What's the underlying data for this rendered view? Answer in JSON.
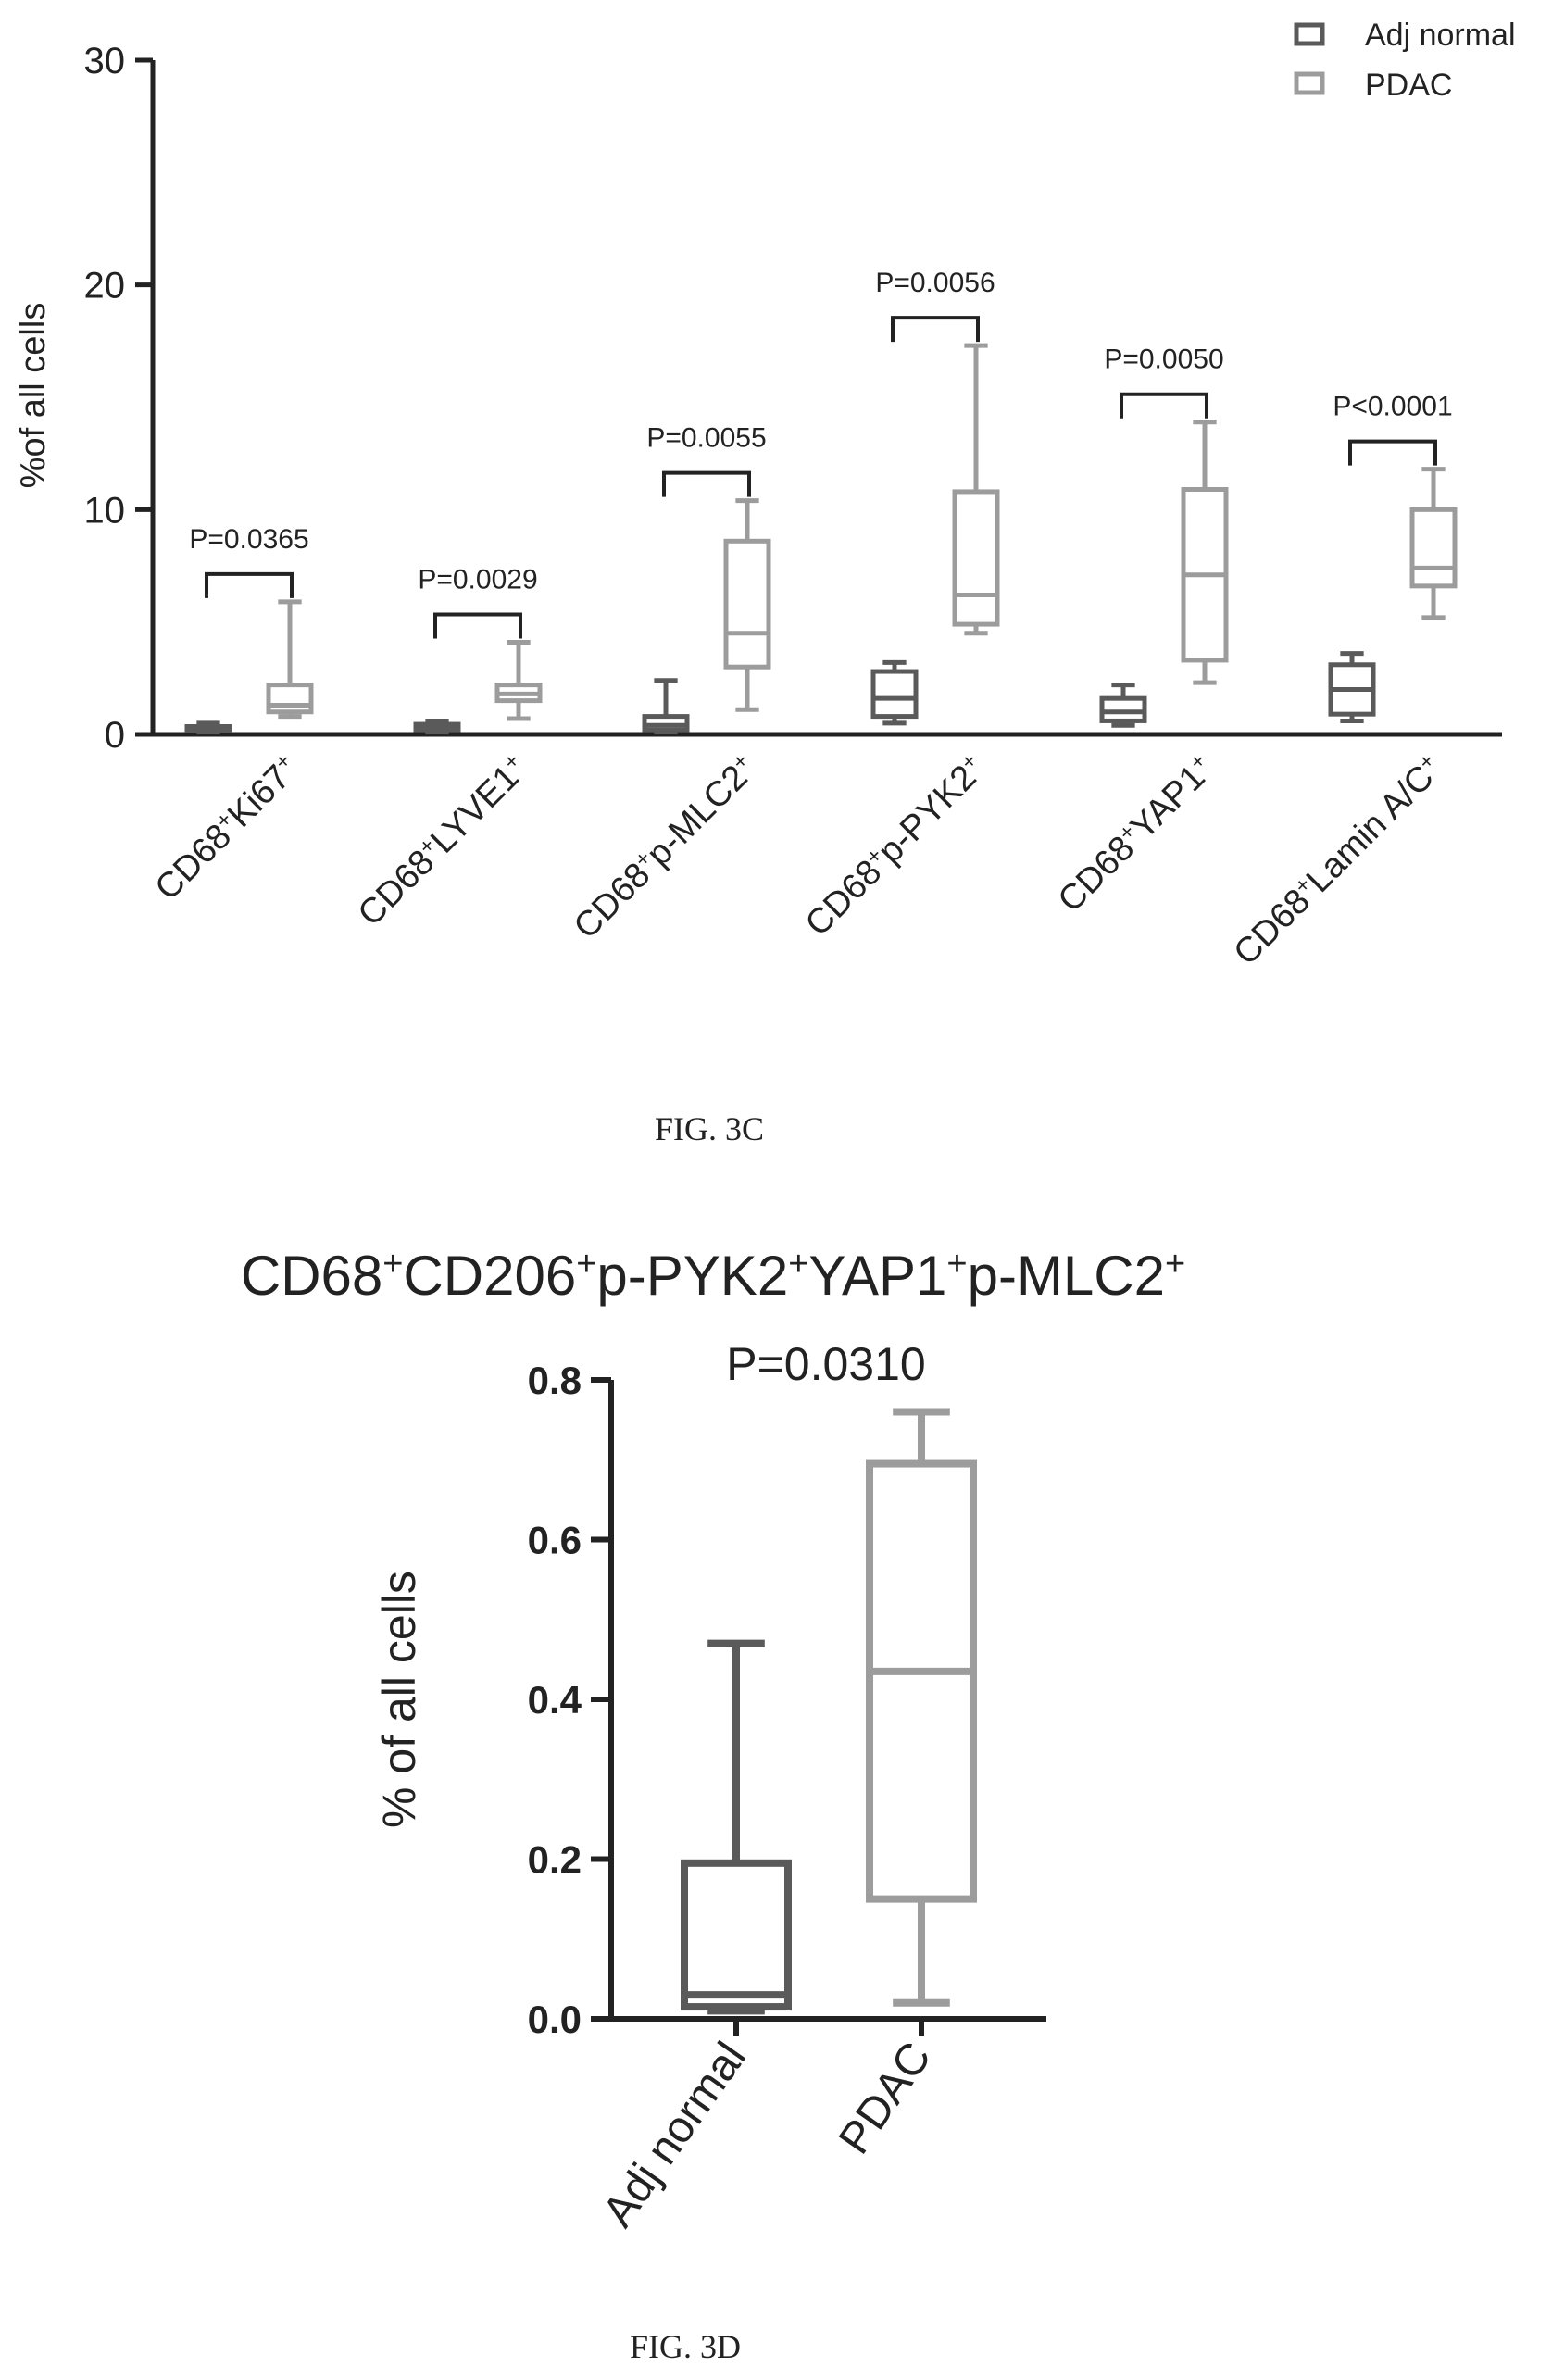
{
  "colors": {
    "adj": "#5a5a5a",
    "pdac": "#9c9c9c",
    "axis": "#222222",
    "text": "#222222"
  },
  "fig3c": {
    "caption": "FIG. 3C",
    "ylabel": "%of all cells",
    "legend": [
      "Adj normal",
      "PDAC"
    ]
  },
  "fig3d": {
    "caption": "FIG. 3D",
    "ylabel": "% of all cells",
    "pvalue": "P=0.0310"
  },
  "chart_data": [
    {
      "type": "box",
      "ylim": [
        0,
        30
      ],
      "yticks": [
        "0",
        "10",
        "20",
        "30"
      ],
      "categories": [
        {
          "base": "CD68",
          "sup1": "+",
          "marker": "Ki67",
          "sup2": "+"
        },
        {
          "base": "CD68",
          "sup1": "+",
          "marker": "LYVE1",
          "sup2": "+"
        },
        {
          "base": "CD68",
          "sup1": "+",
          "marker": "p-MLC2",
          "sup2": "+"
        },
        {
          "base": "CD68",
          "sup1": "+",
          "marker": "p-PYK2",
          "sup2": "+"
        },
        {
          "base": "CD68",
          "sup1": "+",
          "marker": "YAP1",
          "sup2": "+"
        },
        {
          "base": "CD68",
          "sup1": "+",
          "marker": "Lamin A/C",
          "sup2": "+"
        }
      ],
      "pvalues": [
        "P=0.0365",
        "P=0.0029",
        "P=0.0055",
        "P=0.0056",
        "P=0.0050",
        "P<0.0001"
      ],
      "series": [
        {
          "name": "Adj normal",
          "boxes": [
            {
              "min": 0.1,
              "q1": 0.15,
              "median": 0.25,
              "q3": 0.35,
              "max": 0.5
            },
            {
              "min": 0.1,
              "q1": 0.2,
              "median": 0.3,
              "q3": 0.45,
              "max": 0.6
            },
            {
              "min": 0.1,
              "q1": 0.2,
              "median": 0.4,
              "q3": 0.8,
              "max": 2.4
            },
            {
              "min": 0.5,
              "q1": 0.8,
              "median": 1.6,
              "q3": 2.8,
              "max": 3.2
            },
            {
              "min": 0.4,
              "q1": 0.6,
              "median": 1.0,
              "q3": 1.6,
              "max": 2.2
            },
            {
              "min": 0.6,
              "q1": 0.9,
              "median": 2.0,
              "q3": 3.1,
              "max": 3.6
            }
          ]
        },
        {
          "name": "PDAC",
          "boxes": [
            {
              "min": 0.8,
              "q1": 1.0,
              "median": 1.3,
              "q3": 2.2,
              "max": 5.9
            },
            {
              "min": 0.7,
              "q1": 1.5,
              "median": 1.8,
              "q3": 2.2,
              "max": 4.1
            },
            {
              "min": 1.1,
              "q1": 3.0,
              "median": 4.5,
              "q3": 8.6,
              "max": 10.4
            },
            {
              "min": 4.5,
              "q1": 4.9,
              "median": 6.2,
              "q3": 10.8,
              "max": 17.3
            },
            {
              "min": 2.3,
              "q1": 3.3,
              "median": 7.1,
              "q3": 10.9,
              "max": 13.9
            },
            {
              "min": 5.2,
              "q1": 6.6,
              "median": 7.4,
              "q3": 10.0,
              "max": 11.8
            }
          ]
        }
      ]
    },
    {
      "type": "box",
      "title": {
        "base": "CD68",
        "sup1": "+",
        "p2": "CD206",
        "sup2": "+",
        "p3": "p-PYK2",
        "sup3": "+",
        "p4": "YAP1",
        "sup4": "+",
        "p5": "p-MLC2",
        "sup5": "+"
      },
      "ylim": [
        0,
        0.8
      ],
      "yticks": [
        "0.0",
        "0.2",
        "0.4",
        "0.6",
        "0.8"
      ],
      "categories": [
        "Adj normal",
        "PDAC"
      ],
      "boxes": [
        {
          "min": 0.01,
          "q1": 0.015,
          "median": 0.03,
          "q3": 0.195,
          "max": 0.47
        },
        {
          "min": 0.02,
          "q1": 0.15,
          "median": 0.435,
          "q3": 0.695,
          "max": 0.76
        }
      ]
    }
  ]
}
